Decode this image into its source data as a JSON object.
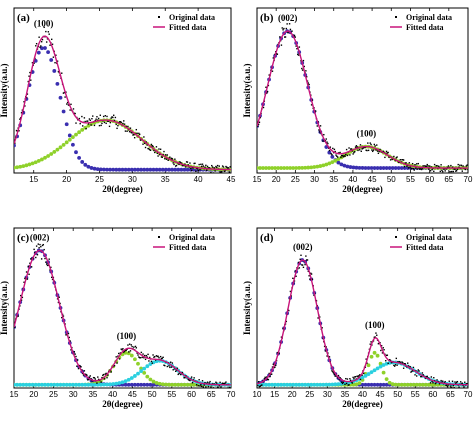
{
  "chart_data": [
    {
      "type": "scatter",
      "panel_label": "(a)",
      "xlabel": "2θ(degree)",
      "ylabel": "Intensity(a.u.)",
      "xlim": [
        12,
        45
      ],
      "xticks": [
        15,
        20,
        25,
        30,
        35,
        40,
        45
      ],
      "legend": [
        "Original data",
        "Fitted  data"
      ],
      "legend_position": "top-right",
      "peak_labels": [
        {
          "text": "(100)",
          "x": 16.5
        }
      ],
      "components": [
        {
          "center": 16.5,
          "height": 0.74,
          "sigma": 2.5,
          "color": "#3a2fb0"
        },
        {
          "center": 26.0,
          "height": 0.3,
          "sigma": 5.5,
          "color": "#8fd12a"
        }
      ],
      "original_data_noise": 0.04,
      "baseline": 0.02
    },
    {
      "type": "scatter",
      "panel_label": "(b)",
      "xlabel": "2θ(degree)",
      "ylabel": "Intensity(a.u.)",
      "xlim": [
        15,
        70
      ],
      "xticks": [
        15,
        20,
        25,
        30,
        35,
        40,
        45,
        50,
        55,
        60,
        65,
        70
      ],
      "legend": [
        "Original data",
        "Fitted  data"
      ],
      "legend_position": "top-right",
      "peak_labels": [
        {
          "text": "(002)",
          "x": 23
        },
        {
          "text": "(100)",
          "x": 43.5
        }
      ],
      "components": [
        {
          "center": 23.0,
          "height": 0.83,
          "sigma": 5.2,
          "color": "#3a2fb0"
        },
        {
          "center": 43.5,
          "height": 0.13,
          "sigma": 5.5,
          "color": "#8fd12a"
        }
      ],
      "original_data_noise": 0.035,
      "baseline": 0.03
    },
    {
      "type": "scatter",
      "panel_label": "(c)",
      "xlabel": "2θ(degree)",
      "ylabel": "Intensity(a.u.)",
      "xlim": [
        15,
        70
      ],
      "xticks": [
        15,
        20,
        25,
        30,
        35,
        40,
        45,
        50,
        55,
        60,
        65,
        70
      ],
      "legend": [
        "Original data",
        "Fitted data"
      ],
      "legend_position": "top-right",
      "peak_labels": [
        {
          "text": "(002)",
          "x": 21.5
        },
        {
          "text": "(100)",
          "x": 43.5
        }
      ],
      "components": [
        {
          "center": 21.5,
          "height": 0.84,
          "sigma": 5.0,
          "color": "#3a2fb0"
        },
        {
          "center": 43.5,
          "height": 0.2,
          "sigma": 3.2,
          "color": "#8fd12a"
        },
        {
          "center": 52.0,
          "height": 0.15,
          "sigma": 4.5,
          "color": "#2ad0e0"
        }
      ],
      "original_data_noise": 0.035,
      "baseline": 0.02
    },
    {
      "type": "scatter",
      "panel_label": "(d)",
      "xlabel": "2θ(degree)",
      "ylabel": "Intensity(a.u.)",
      "xlim": [
        10,
        70
      ],
      "xticks": [
        10,
        15,
        20,
        25,
        30,
        35,
        40,
        45,
        50,
        55,
        60,
        65,
        70
      ],
      "legend": [
        "Original data",
        "Fitted data"
      ],
      "legend_position": "top-right",
      "peak_labels": [
        {
          "text": "(002)",
          "x": 23
        },
        {
          "text": "(100)",
          "x": 43.5
        }
      ],
      "components": [
        {
          "center": 23.0,
          "height": 0.78,
          "sigma": 4.2,
          "color": "#3a2fb0"
        },
        {
          "center": 43.5,
          "height": 0.2,
          "sigma": 1.8,
          "color": "#8fd12a"
        },
        {
          "center": 49.0,
          "height": 0.14,
          "sigma": 6.0,
          "color": "#2ad0e0"
        }
      ],
      "original_data_noise": 0.035,
      "baseline": 0.02
    }
  ],
  "colors": {
    "original_data": "#000000",
    "fitted_data": "#c8147a"
  }
}
